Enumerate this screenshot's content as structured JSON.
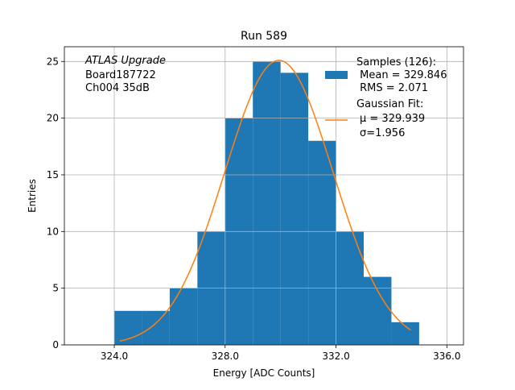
{
  "chart_data": {
    "type": "bar",
    "title": "Run 589",
    "xlabel": "Energy [ADC Counts]",
    "ylabel": "Entries",
    "xlim": [
      322.2,
      336.6
    ],
    "ylim": [
      0,
      26.3
    ],
    "xticks": [
      324.0,
      328.0,
      332.0,
      336.0
    ],
    "xtick_labels": [
      "324.0",
      "328.0",
      "332.0",
      "336.0"
    ],
    "yticks": [
      0,
      5,
      10,
      15,
      20,
      25
    ],
    "ytick_labels": [
      "0",
      "5",
      "10",
      "15",
      "20",
      "25"
    ],
    "grid": true,
    "legend_position": "top-right",
    "colors": {
      "histogram": "#1f77b4",
      "fit": "#ff7f0e"
    },
    "annotation_lines": [
      "ATLAS Upgrade",
      "Board187722",
      "Ch004 35dB"
    ],
    "histogram": {
      "bin_edges": [
        324,
        325,
        326,
        327,
        328,
        329,
        330,
        331,
        332,
        333,
        334,
        335
      ],
      "counts": [
        3,
        3,
        5,
        10,
        20,
        25,
        24,
        18,
        10,
        6,
        2
      ]
    },
    "fit": {
      "mu": 329.939,
      "sigma": 1.956,
      "amplitude": 25.1,
      "x_range": [
        324.2,
        334.7
      ]
    },
    "legend": {
      "samples": [
        "Samples (126):",
        " Mean = 329.846",
        " RMS = 2.071"
      ],
      "gaussian": [
        "Gaussian Fit:",
        "μ = 329.939",
        "σ=1.956"
      ]
    }
  }
}
